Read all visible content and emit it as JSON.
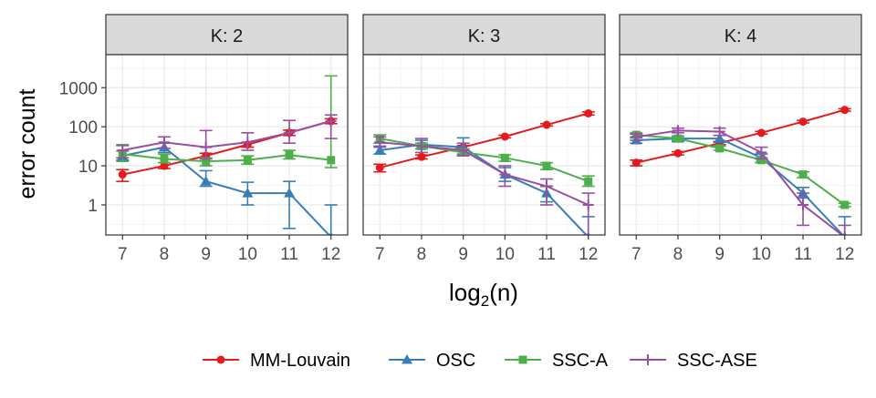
{
  "chart_data": {
    "type": "line",
    "facet_label_prefix": "K: ",
    "xlabel_base": "log",
    "xlabel_sub": "2",
    "xlabel_rest": "(n)",
    "ylabel": "error count",
    "x_ticks": [
      7,
      8,
      9,
      10,
      11,
      12
    ],
    "y_ticks": [
      1,
      10,
      100,
      1000
    ],
    "y_scale": "log10",
    "y_range": [
      0.17,
      7000
    ],
    "x_range": [
      6.6,
      12.4
    ],
    "legend_position": "bottom",
    "series": [
      {
        "name": "MM-Louvain",
        "color": "#E41A1C",
        "marker": "circle"
      },
      {
        "name": "OSC",
        "color": "#377EB8",
        "marker": "triangle"
      },
      {
        "name": "SSC-A",
        "color": "#4DAF4A",
        "marker": "square"
      },
      {
        "name": "SSC-ASE",
        "color": "#984EA3",
        "marker": "plus"
      }
    ],
    "facets": [
      {
        "K": "2",
        "series": [
          {
            "values": [
              6,
              10,
              18,
              35,
              70,
              140
            ],
            "lo": [
              4,
              8.5,
              16,
              30,
              60,
              120
            ],
            "hi": [
              8,
              12,
              21,
              40,
              82,
              160
            ]
          },
          {
            "values": [
              18,
              30,
              4,
              2,
              2,
              0.15
            ],
            "lo": [
              14,
              22,
              3,
              1,
              0.25,
              0.05
            ],
            "hi": [
              24,
              38,
              7.5,
              3.8,
              4,
              1
            ]
          },
          {
            "values": [
              20,
              15,
              13,
              14,
              19,
              14
            ],
            "lo": [
              13,
              12,
              10,
              11,
              15,
              9
            ],
            "hi": [
              35,
              20,
              16,
              18,
              25,
              2000
            ]
          },
          {
            "values": [
              25,
              40,
              30,
              40,
              70,
              140
            ],
            "lo": [
              16,
              28,
              15,
              25,
              38,
              50
            ],
            "hi": [
              33,
              55,
              80,
              70,
              145,
              200
            ]
          }
        ]
      },
      {
        "K": "3",
        "series": [
          {
            "values": [
              9,
              17,
              30,
              56,
              112,
              220
            ],
            "lo": [
              7,
              15,
              27,
              52,
              105,
              200
            ],
            "hi": [
              11,
              19,
              33,
              61,
              120,
              240
            ]
          },
          {
            "values": [
              25,
              35,
              30,
              6,
              2,
              0.15
            ],
            "lo": [
              20,
              27,
              20,
              4,
              1.2,
              0.05
            ],
            "hi": [
              32,
              45,
              52,
              9,
              3,
              0.5
            ]
          },
          {
            "values": [
              50,
              32,
              22,
              16,
              10,
              4
            ],
            "lo": [
              38,
              27,
              19,
              13,
              8,
              3
            ],
            "hi": [
              62,
              38,
              27,
              19,
              12,
              5.5
            ]
          },
          {
            "values": [
              40,
              32,
              25,
              6,
              3,
              1
            ],
            "lo": [
              30,
              22,
              18,
              3,
              1,
              0.15
            ],
            "hi": [
              55,
              50,
              38,
              10,
              4.6,
              2
            ]
          }
        ]
      },
      {
        "K": "4",
        "series": [
          {
            "values": [
              12,
              21,
              38,
              70,
              135,
              270
            ],
            "lo": [
              10,
              19,
              35,
              65,
              125,
              250
            ],
            "hi": [
              14,
              23,
              42,
              76,
              145,
              290
            ]
          },
          {
            "values": [
              45,
              50,
              50,
              16,
              2,
              0.15
            ],
            "lo": [
              38,
              42,
              40,
              12,
              1.5,
              0.05
            ],
            "hi": [
              52,
              58,
              60,
              20,
              2.8,
              0.5
            ]
          },
          {
            "values": [
              62,
              50,
              28,
              14,
              6,
              1
            ],
            "lo": [
              55,
              45,
              25,
              12,
              5,
              0.9
            ],
            "hi": [
              70,
              56,
              32,
              16,
              7,
              1.1
            ]
          },
          {
            "values": [
              55,
              80,
              75,
              22,
              1,
              0.15
            ],
            "lo": [
              45,
              70,
              60,
              15,
              0.3,
              0.05
            ],
            "hi": [
              65,
              92,
              92,
              30,
              2,
              0.3
            ]
          }
        ]
      }
    ]
  }
}
